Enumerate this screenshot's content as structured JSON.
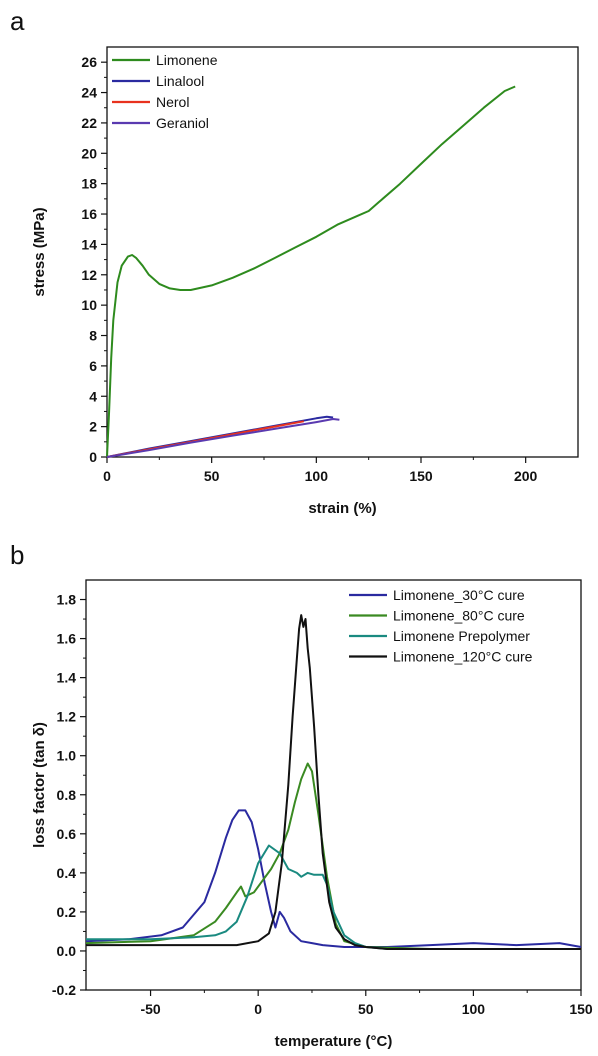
{
  "chart_data": [
    {
      "panel_label": "a",
      "type": "line",
      "xlabel": "strain (%)",
      "ylabel": "stress (MPa)",
      "xlim": [
        0,
        225
      ],
      "ylim": [
        0,
        27
      ],
      "xticks": [
        0,
        50,
        100,
        150,
        200
      ],
      "yticks": [
        0,
        2,
        4,
        6,
        8,
        10,
        12,
        14,
        16,
        18,
        20,
        22,
        24,
        26
      ],
      "grid": false,
      "legend_position": "top-left",
      "series": [
        {
          "name": "Limonene",
          "color": "#2e8b1e",
          "x": [
            0,
            1,
            2,
            3,
            5,
            7,
            10,
            12,
            14,
            17,
            20,
            25,
            30,
            35,
            40,
            50,
            60,
            70,
            80,
            90,
            100,
            110,
            120,
            125,
            130,
            140,
            150,
            160,
            170,
            180,
            190,
            195
          ],
          "y": [
            0,
            3,
            6.5,
            9,
            11.5,
            12.6,
            13.2,
            13.3,
            13.1,
            12.6,
            12.0,
            11.4,
            11.1,
            11.0,
            11.0,
            11.3,
            11.8,
            12.4,
            13.1,
            13.8,
            14.5,
            15.3,
            15.9,
            16.2,
            16.8,
            18.0,
            19.3,
            20.6,
            21.8,
            23.0,
            24.1,
            24.4
          ]
        },
        {
          "name": "Linalool",
          "color": "#2a2aa0",
          "x": [
            0,
            20,
            40,
            60,
            80,
            100,
            105,
            108
          ],
          "y": [
            0,
            0.55,
            1.05,
            1.55,
            2.05,
            2.55,
            2.65,
            2.6
          ]
        },
        {
          "name": "Nerol",
          "color": "#e8321e",
          "x": [
            0,
            20,
            40,
            60,
            80,
            94
          ],
          "y": [
            0,
            0.5,
            1.0,
            1.5,
            2.0,
            2.35
          ]
        },
        {
          "name": "Geraniol",
          "color": "#5a3ab0",
          "x": [
            0,
            20,
            40,
            60,
            80,
            100,
            108,
            111
          ],
          "y": [
            0,
            0.45,
            0.95,
            1.4,
            1.85,
            2.3,
            2.5,
            2.45
          ]
        }
      ]
    },
    {
      "panel_label": "b",
      "type": "line",
      "xlabel": "temperature (°C)",
      "ylabel": "loss factor (tan δ)",
      "xlim": [
        -80,
        150
      ],
      "ylim": [
        -0.2,
        1.9
      ],
      "xticks": [
        -50,
        0,
        50,
        100,
        150
      ],
      "yticks": [
        -0.2,
        0.0,
        0.2,
        0.4,
        0.6,
        0.8,
        1.0,
        1.2,
        1.4,
        1.6,
        1.8
      ],
      "ytick_labels": [
        "-0.2",
        "0.0",
        "0.2",
        "0.4",
        "0.6",
        "0.8",
        "1.0",
        "1.2",
        "1.4",
        "1.6",
        "1.8"
      ],
      "grid": false,
      "legend_position": "top-right",
      "series": [
        {
          "name": "Limonene_30°C cure",
          "color": "#2a2aa0",
          "x": [
            -80,
            -60,
            -45,
            -35,
            -25,
            -20,
            -15,
            -12,
            -9,
            -6,
            -3,
            0,
            3,
            6,
            8,
            10,
            12,
            15,
            20,
            25,
            30,
            40,
            60,
            80,
            100,
            120,
            140,
            150
          ],
          "y": [
            0.05,
            0.06,
            0.08,
            0.12,
            0.25,
            0.4,
            0.58,
            0.67,
            0.72,
            0.72,
            0.66,
            0.52,
            0.35,
            0.2,
            0.12,
            0.2,
            0.17,
            0.1,
            0.05,
            0.04,
            0.03,
            0.02,
            0.02,
            0.03,
            0.04,
            0.03,
            0.04,
            0.02
          ]
        },
        {
          "name": "Limonene_80°C cure",
          "color": "#3a8a22",
          "x": [
            -80,
            -50,
            -30,
            -20,
            -15,
            -10,
            -8,
            -6,
            -2,
            2,
            6,
            10,
            14,
            17,
            20,
            23,
            25,
            28,
            32,
            36,
            40,
            50,
            80,
            150
          ],
          "y": [
            0.04,
            0.05,
            0.08,
            0.15,
            0.22,
            0.3,
            0.33,
            0.28,
            0.3,
            0.36,
            0.42,
            0.5,
            0.62,
            0.76,
            0.88,
            0.96,
            0.92,
            0.7,
            0.38,
            0.14,
            0.05,
            0.02,
            0.01,
            0.01
          ]
        },
        {
          "name": "Limonene Prepolymer",
          "color": "#1a8a80",
          "x": [
            -80,
            -50,
            -30,
            -20,
            -15,
            -10,
            -5,
            0,
            5,
            10,
            14,
            18,
            20,
            23,
            26,
            30,
            32,
            35,
            40,
            45,
            50,
            60,
            80,
            150
          ],
          "y": [
            0.06,
            0.06,
            0.07,
            0.08,
            0.1,
            0.15,
            0.28,
            0.45,
            0.54,
            0.5,
            0.42,
            0.4,
            0.38,
            0.4,
            0.39,
            0.39,
            0.34,
            0.2,
            0.08,
            0.04,
            0.02,
            0.01,
            0.01,
            0.01
          ]
        },
        {
          "name": "Limonene_120°C cure",
          "color": "#111111",
          "x": [
            -80,
            -50,
            -20,
            -10,
            0,
            5,
            8,
            11,
            14,
            16,
            18,
            19,
            20,
            21,
            22,
            23,
            24,
            26,
            28,
            30,
            33,
            36,
            40,
            45,
            50,
            60,
            80,
            150
          ],
          "y": [
            0.03,
            0.03,
            0.03,
            0.03,
            0.05,
            0.09,
            0.2,
            0.45,
            0.85,
            1.2,
            1.5,
            1.65,
            1.72,
            1.66,
            1.7,
            1.55,
            1.45,
            1.15,
            0.8,
            0.5,
            0.25,
            0.12,
            0.06,
            0.03,
            0.02,
            0.01,
            0.01,
            0.01
          ]
        }
      ]
    }
  ]
}
